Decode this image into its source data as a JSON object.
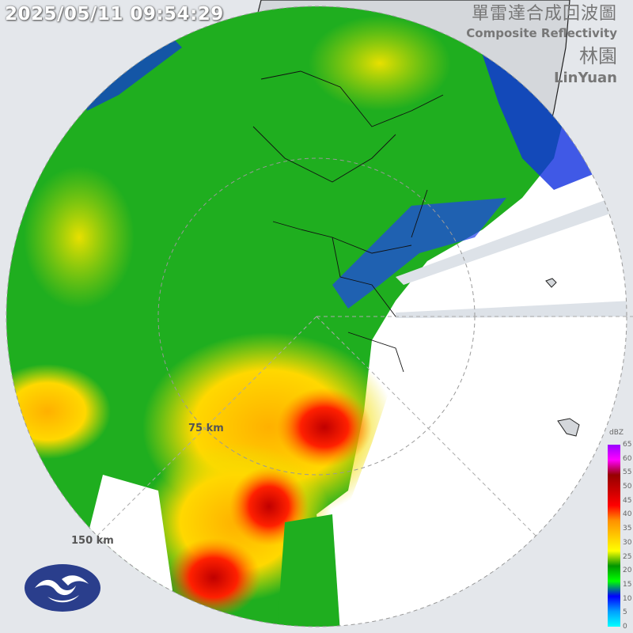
{
  "header": {
    "timestamp": "2025/05/11 09:54:29",
    "title_zh": "單雷達合成回波圖",
    "title_en": "Composite Reflectivity",
    "station_zh": "林園",
    "station_en": "LinYuan"
  },
  "range_rings": [
    {
      "label": "75 km"
    },
    {
      "label": "150 km"
    }
  ],
  "legend": {
    "unit": "dBZ",
    "ticks": [
      "65",
      "60",
      "55",
      "50",
      "45",
      "40",
      "35",
      "30",
      "25",
      "20",
      "15",
      "10",
      "5",
      "0"
    ],
    "colors": [
      "#00ffff",
      "#00a0ff",
      "#0000ff",
      "#00ff00",
      "#009600",
      "#ffff00",
      "#ffc800",
      "#ff9000",
      "#ff0000",
      "#c80000",
      "#960000",
      "#ff00ff",
      "#9900ff"
    ]
  },
  "logo": {
    "name": "cwa-logo-icon"
  },
  "colors": {
    "background": "#e4e7eb",
    "land": "#d4d7db",
    "echo_base": "#1fae1f"
  }
}
